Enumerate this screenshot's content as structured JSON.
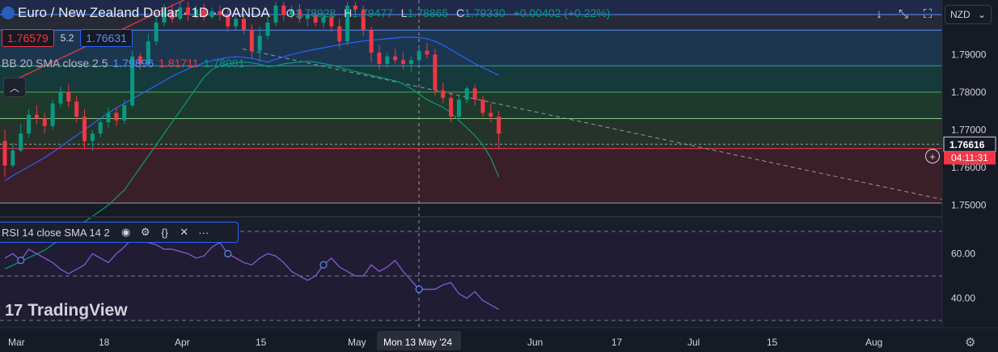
{
  "header": {
    "symbol_title": "Euro / New Zealand Dollar · 1D · OANDA",
    "ohlc": [
      {
        "k": "O",
        "v": "1.78928"
      },
      {
        "k": "H",
        "v": "1.79477"
      },
      {
        "k": "L",
        "v": "1.78865"
      },
      {
        "k": "C",
        "v": "1.79330"
      }
    ],
    "change": "+0.00402 (+0.22%)",
    "bid": "1.76579",
    "spread": "5.2",
    "ask": "1.76631"
  },
  "bb_legend": {
    "label": "BB 20 SMA close 2.5",
    "basis": "1.79896",
    "upper": "1.81711",
    "lower": "1.78081"
  },
  "rsi_legend": {
    "label": "RSI 14 close SMA 14 2"
  },
  "currency_button": {
    "label": "NZD"
  },
  "brand": {
    "name": "TradingView"
  },
  "price_axis": {
    "ticks": [
      "1.80000",
      "1.79000",
      "1.78000",
      "1.77000",
      "1.76000",
      "1.75000"
    ],
    "current_price": "1.76616",
    "countdown": "04:11:31"
  },
  "rsi_axis": {
    "ticks": [
      "60.00",
      "40.00"
    ]
  },
  "time_axis": {
    "ticks": [
      "Mar",
      "18",
      "Apr",
      "15",
      "May",
      "Jun",
      "17",
      "Jul",
      "15",
      "Aug"
    ],
    "crosshair_label": "Mon 13 May '24"
  },
  "colors": {
    "up": "#089981",
    "down": "#f23645",
    "bb_basis": "#2962ff",
    "bb_upper": "#f23645",
    "bb_lower": "#089981",
    "rsi": "#7e57c2",
    "background": "#161a25"
  },
  "chart_data": {
    "type": "candlestick",
    "title": "Euro / New Zealand Dollar · 1D · OANDA",
    "ylim": [
      1.7475,
      1.8045
    ],
    "candles": [
      {
        "o": 1.767,
        "h": 1.77,
        "l": 1.7575,
        "c": 1.7605
      },
      {
        "o": 1.7605,
        "h": 1.7665,
        "l": 1.76,
        "c": 1.7645
      },
      {
        "o": 1.7645,
        "h": 1.7715,
        "l": 1.764,
        "c": 1.769
      },
      {
        "o": 1.769,
        "h": 1.7755,
        "l": 1.768,
        "c": 1.774
      },
      {
        "o": 1.774,
        "h": 1.7765,
        "l": 1.7715,
        "c": 1.773
      },
      {
        "o": 1.773,
        "h": 1.7745,
        "l": 1.769,
        "c": 1.771
      },
      {
        "o": 1.771,
        "h": 1.778,
        "l": 1.77,
        "c": 1.777
      },
      {
        "o": 1.777,
        "h": 1.7815,
        "l": 1.776,
        "c": 1.78
      },
      {
        "o": 1.78,
        "h": 1.782,
        "l": 1.776,
        "c": 1.7775
      },
      {
        "o": 1.7775,
        "h": 1.779,
        "l": 1.772,
        "c": 1.7735
      },
      {
        "o": 1.7735,
        "h": 1.7755,
        "l": 1.765,
        "c": 1.767
      },
      {
        "o": 1.767,
        "h": 1.77,
        "l": 1.7645,
        "c": 1.769
      },
      {
        "o": 1.769,
        "h": 1.773,
        "l": 1.768,
        "c": 1.772
      },
      {
        "o": 1.772,
        "h": 1.776,
        "l": 1.7705,
        "c": 1.7745
      },
      {
        "o": 1.7745,
        "h": 1.776,
        "l": 1.771,
        "c": 1.7725
      },
      {
        "o": 1.7725,
        "h": 1.778,
        "l": 1.7715,
        "c": 1.7765
      },
      {
        "o": 1.7765,
        "h": 1.791,
        "l": 1.776,
        "c": 1.7895
      },
      {
        "o": 1.7895,
        "h": 1.7905,
        "l": 1.786,
        "c": 1.7875
      },
      {
        "o": 1.7875,
        "h": 1.7955,
        "l": 1.787,
        "c": 1.7935
      },
      {
        "o": 1.7935,
        "h": 1.8005,
        "l": 1.7925,
        "c": 1.7985
      },
      {
        "o": 1.7985,
        "h": 1.8035,
        "l": 1.7975,
        "c": 1.8015
      },
      {
        "o": 1.8015,
        "h": 1.8035,
        "l": 1.7985,
        "c": 1.7995
      },
      {
        "o": 1.7995,
        "h": 1.804,
        "l": 1.799,
        "c": 1.8025
      },
      {
        "o": 1.8025,
        "h": 1.804,
        "l": 1.799,
        "c": 1.8005
      },
      {
        "o": 1.8005,
        "h": 1.803,
        "l": 1.7995,
        "c": 1.802
      },
      {
        "o": 1.802,
        "h": 1.8035,
        "l": 1.799,
        "c": 1.8
      },
      {
        "o": 1.8,
        "h": 1.8025,
        "l": 1.7995,
        "c": 1.8015
      },
      {
        "o": 1.8015,
        "h": 1.803,
        "l": 1.799,
        "c": 1.8005
      },
      {
        "o": 1.8005,
        "h": 1.802,
        "l": 1.796,
        "c": 1.7975
      },
      {
        "o": 1.7975,
        "h": 1.8005,
        "l": 1.7965,
        "c": 1.7995
      },
      {
        "o": 1.7995,
        "h": 1.8005,
        "l": 1.7955,
        "c": 1.7965
      },
      {
        "o": 1.7965,
        "h": 1.798,
        "l": 1.789,
        "c": 1.791
      },
      {
        "o": 1.791,
        "h": 1.7975,
        "l": 1.788,
        "c": 1.795
      },
      {
        "o": 1.795,
        "h": 1.8,
        "l": 1.794,
        "c": 1.7985
      },
      {
        "o": 1.7985,
        "h": 1.804,
        "l": 1.7975,
        "c": 1.803
      },
      {
        "o": 1.803,
        "h": 1.804,
        "l": 1.799,
        "c": 1.8005
      },
      {
        "o": 1.8005,
        "h": 1.803,
        "l": 1.7995,
        "c": 1.802
      },
      {
        "o": 1.802,
        "h": 1.8035,
        "l": 1.7985,
        "c": 1.7995
      },
      {
        "o": 1.7995,
        "h": 1.8015,
        "l": 1.7975,
        "c": 1.8005
      },
      {
        "o": 1.8005,
        "h": 1.802,
        "l": 1.7975,
        "c": 1.7985
      },
      {
        "o": 1.7985,
        "h": 1.801,
        "l": 1.797,
        "c": 1.8
      },
      {
        "o": 1.8,
        "h": 1.8015,
        "l": 1.796,
        "c": 1.7975
      },
      {
        "o": 1.7975,
        "h": 1.7995,
        "l": 1.7915,
        "c": 1.7935
      },
      {
        "o": 1.7935,
        "h": 1.804,
        "l": 1.7925,
        "c": 1.803
      },
      {
        "o": 1.803,
        "h": 1.804,
        "l": 1.8005,
        "c": 1.802
      },
      {
        "o": 1.802,
        "h": 1.803,
        "l": 1.795,
        "c": 1.7965
      },
      {
        "o": 1.7965,
        "h": 1.7975,
        "l": 1.788,
        "c": 1.7905
      },
      {
        "o": 1.7905,
        "h": 1.7925,
        "l": 1.786,
        "c": 1.7875
      },
      {
        "o": 1.7875,
        "h": 1.7905,
        "l": 1.7865,
        "c": 1.7895
      },
      {
        "o": 1.7895,
        "h": 1.7915,
        "l": 1.7875,
        "c": 1.7885
      },
      {
        "o": 1.7885,
        "h": 1.7905,
        "l": 1.786,
        "c": 1.7875
      },
      {
        "o": 1.7875,
        "h": 1.7895,
        "l": 1.7855,
        "c": 1.7885
      },
      {
        "o": 1.7885,
        "h": 1.792,
        "l": 1.7875,
        "c": 1.791
      },
      {
        "o": 1.791,
        "h": 1.793,
        "l": 1.789,
        "c": 1.79
      },
      {
        "o": 1.79,
        "h": 1.7915,
        "l": 1.779,
        "c": 1.7805
      },
      {
        "o": 1.7805,
        "h": 1.7825,
        "l": 1.777,
        "c": 1.7785
      },
      {
        "o": 1.7785,
        "h": 1.78,
        "l": 1.772,
        "c": 1.7735
      },
      {
        "o": 1.7735,
        "h": 1.779,
        "l": 1.773,
        "c": 1.778
      },
      {
        "o": 1.778,
        "h": 1.7815,
        "l": 1.777,
        "c": 1.781
      },
      {
        "o": 1.781,
        "h": 1.782,
        "l": 1.7765,
        "c": 1.778
      },
      {
        "o": 1.778,
        "h": 1.779,
        "l": 1.7735,
        "c": 1.7745
      },
      {
        "o": 1.7745,
        "h": 1.777,
        "l": 1.772,
        "c": 1.7735
      },
      {
        "o": 1.7735,
        "h": 1.775,
        "l": 1.765,
        "c": 1.769
      }
    ],
    "bb_basis": [
      1.7565,
      1.7578,
      1.759,
      1.7602,
      1.7614,
      1.7626,
      1.764,
      1.7655,
      1.767,
      1.7685,
      1.77,
      1.7715,
      1.773,
      1.7745,
      1.7758,
      1.777,
      1.7782,
      1.7794,
      1.7806,
      1.7818,
      1.783,
      1.7842,
      1.7852,
      1.7862,
      1.787,
      1.7878,
      1.7884,
      1.7888,
      1.7892,
      1.7894,
      1.7893,
      1.789,
      1.7885,
      1.788,
      1.7887,
      1.7894,
      1.79,
      1.7905,
      1.791,
      1.7914,
      1.7918,
      1.7922,
      1.7926,
      1.793,
      1.7933,
      1.7936,
      1.7938,
      1.794,
      1.7942,
      1.7944,
      1.7946,
      1.7946,
      1.7945,
      1.7942,
      1.7935,
      1.7925,
      1.7913,
      1.79,
      1.7888,
      1.7876,
      1.7865,
      1.7855,
      1.7845
    ],
    "bb_upper": [
      1.782,
      1.783,
      1.784,
      1.785,
      1.786,
      1.787,
      1.788,
      1.789,
      1.79,
      1.791,
      1.792,
      1.793,
      1.794,
      1.795,
      1.796,
      1.797,
      1.798,
      1.799,
      1.8,
      1.801,
      1.802,
      1.803,
      1.804,
      1.805,
      1.806,
      1.807,
      1.808,
      1.809,
      1.81,
      1.811,
      1.812,
      1.813,
      1.814,
      1.815,
      1.816,
      1.817,
      1.8175,
      1.818,
      1.8185,
      1.819,
      1.8195,
      1.82,
      1.8205,
      1.821,
      1.8215,
      1.822,
      1.8225,
      1.823,
      1.8235,
      1.824,
      1.8245,
      1.825,
      1.8255,
      1.826,
      1.8265,
      1.827,
      1.8275,
      1.828,
      1.8285,
      1.829,
      1.8295,
      1.83,
      1.8305
    ],
    "bb_lower": [
      1.733,
      1.734,
      1.735,
      1.736,
      1.737,
      1.738,
      1.7395,
      1.741,
      1.7425,
      1.744,
      1.7455,
      1.747,
      1.7485,
      1.75,
      1.752,
      1.754,
      1.757,
      1.76,
      1.763,
      1.766,
      1.769,
      1.772,
      1.775,
      1.778,
      1.781,
      1.784,
      1.786,
      1.787,
      1.7875,
      1.7878,
      1.788,
      1.7878,
      1.7874,
      1.7868,
      1.787,
      1.7875,
      1.7878,
      1.788,
      1.7882,
      1.788,
      1.7876,
      1.7872,
      1.7866,
      1.786,
      1.7855,
      1.785,
      1.7845,
      1.784,
      1.7835,
      1.783,
      1.7822,
      1.781,
      1.7795,
      1.778,
      1.777,
      1.776,
      1.7745,
      1.7725,
      1.7705,
      1.7685,
      1.766,
      1.7625,
      1.7575
    ],
    "rsi": [
      58,
      60,
      57,
      62,
      60,
      58,
      56,
      53,
      51,
      53,
      55,
      60,
      58,
      56,
      60,
      63,
      67,
      66,
      65,
      64,
      62,
      62,
      61,
      60,
      58,
      59,
      63,
      65,
      60,
      58,
      56,
      55,
      58,
      60,
      59,
      56,
      52,
      50,
      48,
      50,
      55,
      58,
      54,
      52,
      50,
      50,
      55,
      52,
      54,
      57,
      52,
      48,
      44,
      44,
      44,
      46,
      47,
      42,
      40,
      43,
      39,
      37,
      35
    ],
    "series": [
      {
        "name": "BB 20 SMA close 2.5"
      },
      {
        "name": "RSI 14 close SMA 14 2"
      }
    ]
  }
}
